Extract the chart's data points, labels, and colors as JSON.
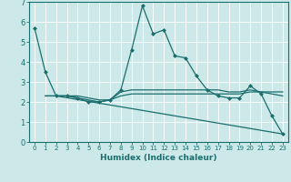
{
  "xlabel": "Humidex (Indice chaleur)",
  "background_color": "#cce8e8",
  "line_color": "#1a6e6e",
  "xlim": [
    -0.5,
    23.5
  ],
  "ylim": [
    0,
    7
  ],
  "yticks": [
    0,
    1,
    2,
    3,
    4,
    5,
    6,
    7
  ],
  "xticks": [
    0,
    1,
    2,
    3,
    4,
    5,
    6,
    7,
    8,
    9,
    10,
    11,
    12,
    13,
    14,
    15,
    16,
    17,
    18,
    19,
    20,
    21,
    22,
    23
  ],
  "series": [
    {
      "x": [
        0,
        1,
        2,
        3,
        4,
        5,
        6,
        7,
        8,
        9,
        10,
        11,
        12,
        13,
        14,
        15,
        16,
        17,
        18,
        19,
        20,
        21,
        22,
        23
      ],
      "y": [
        5.7,
        3.5,
        2.3,
        2.3,
        2.2,
        2.0,
        2.0,
        2.1,
        2.6,
        4.6,
        6.8,
        5.4,
        5.6,
        4.3,
        4.2,
        3.3,
        2.6,
        2.3,
        2.2,
        2.2,
        2.8,
        2.4,
        1.3,
        0.4
      ],
      "marker": true
    },
    {
      "x": [
        1,
        2,
        3,
        4,
        5,
        6,
        7,
        8,
        9,
        10,
        11,
        12,
        13,
        14,
        15,
        16,
        17,
        18,
        19,
        20,
        21,
        22,
        23
      ],
      "y": [
        2.3,
        2.3,
        2.3,
        2.3,
        2.2,
        2.1,
        2.1,
        2.3,
        2.4,
        2.4,
        2.4,
        2.4,
        2.4,
        2.4,
        2.4,
        2.4,
        2.4,
        2.4,
        2.4,
        2.5,
        2.5,
        2.5,
        2.5
      ],
      "marker": false
    },
    {
      "x": [
        1,
        2,
        3,
        4,
        5,
        6,
        7,
        8,
        9,
        10,
        11,
        12,
        13,
        14,
        15,
        16,
        17,
        18,
        19,
        20,
        21,
        22,
        23
      ],
      "y": [
        2.3,
        2.3,
        2.3,
        2.2,
        2.1,
        2.0,
        2.1,
        2.5,
        2.6,
        2.6,
        2.6,
        2.6,
        2.6,
        2.6,
        2.6,
        2.6,
        2.6,
        2.5,
        2.5,
        2.6,
        2.5,
        2.4,
        2.3
      ],
      "marker": false
    },
    {
      "x": [
        2,
        23
      ],
      "y": [
        2.3,
        0.4
      ],
      "marker": false
    }
  ]
}
